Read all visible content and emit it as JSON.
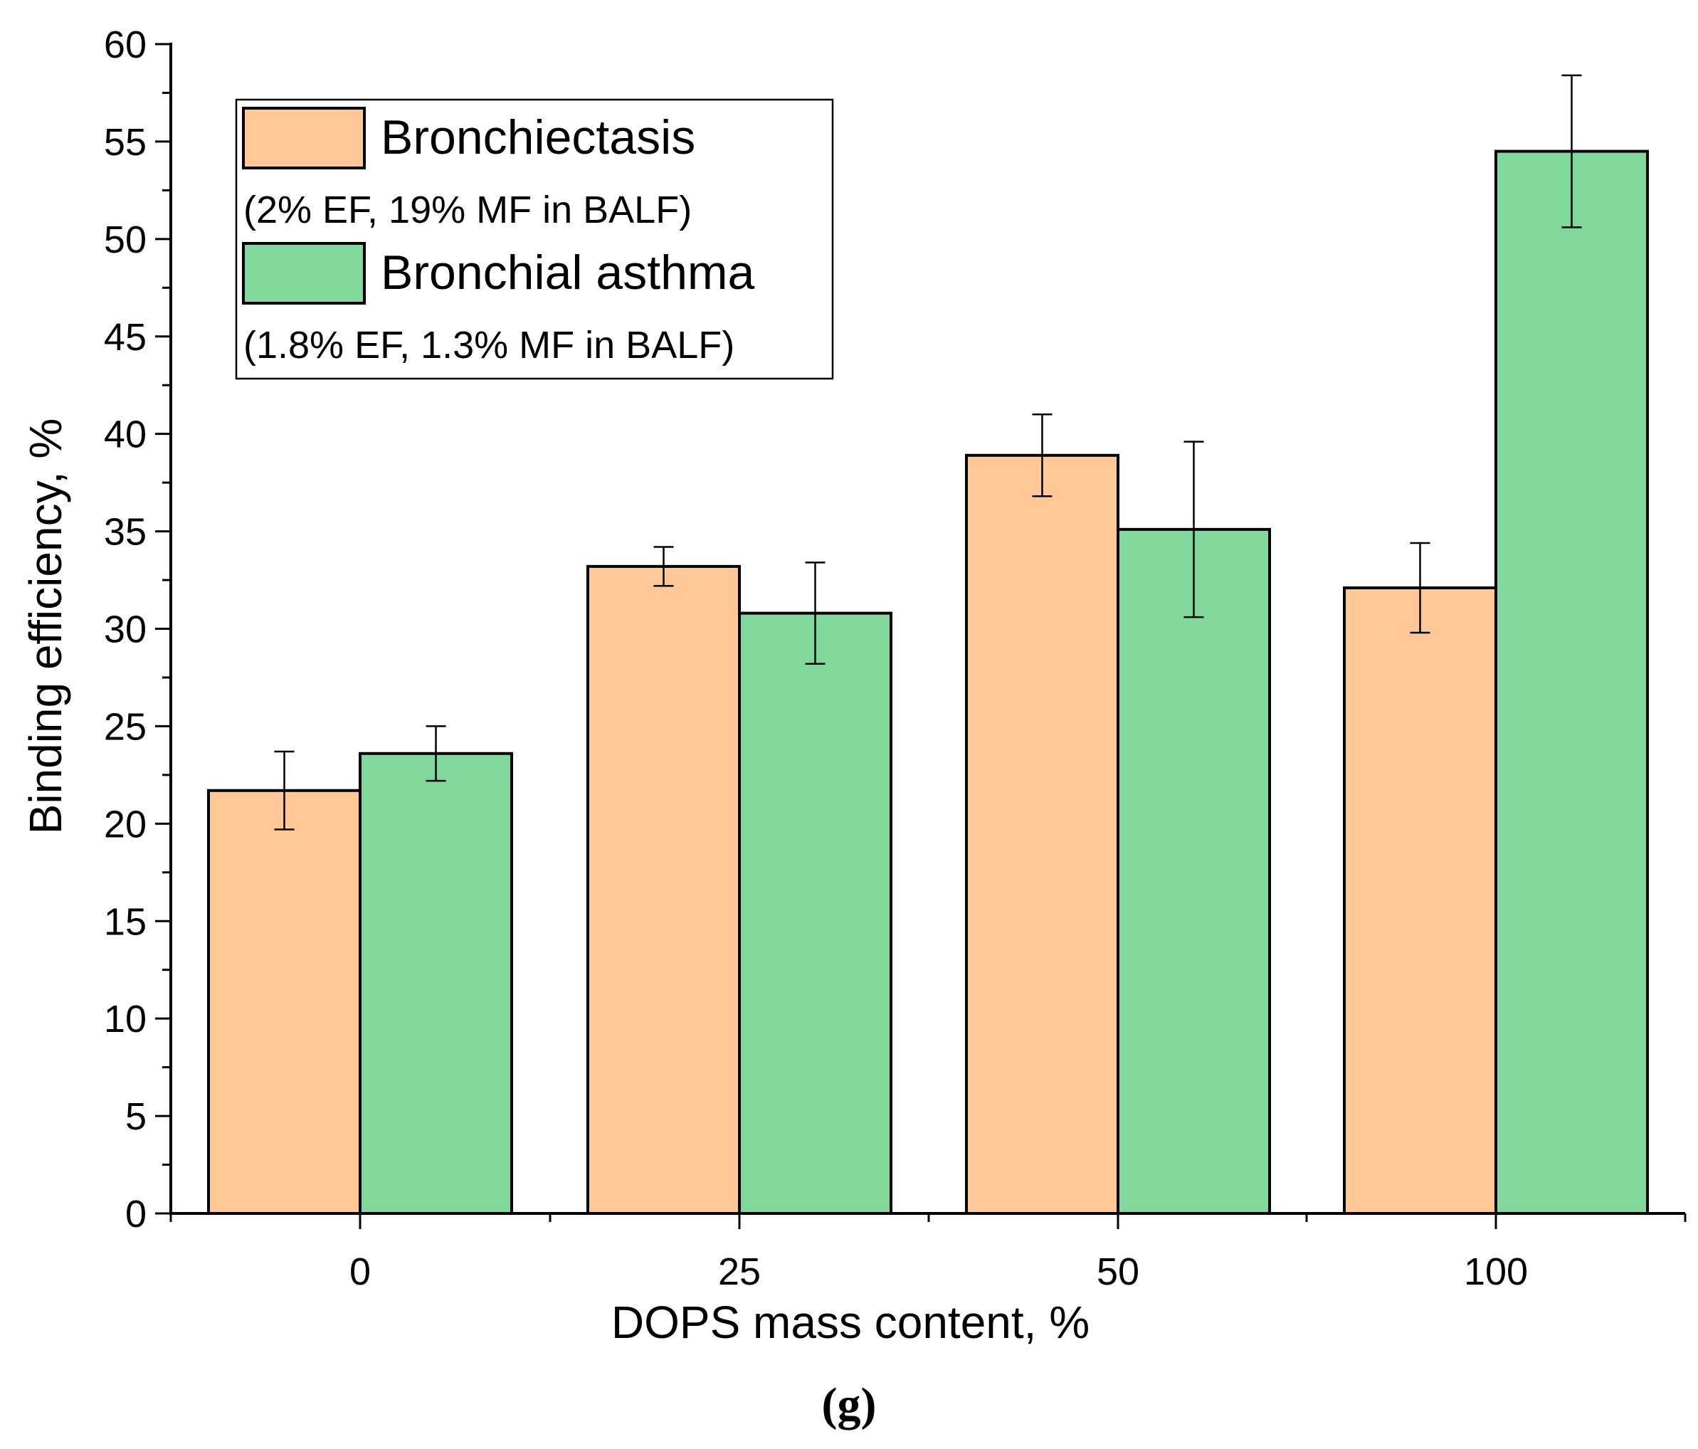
{
  "chart_data": {
    "type": "bar",
    "title": "",
    "xlabel": "DOPS mass content, %",
    "ylabel": "Binding efficiency, %",
    "categories": [
      "0",
      "25",
      "50",
      "100"
    ],
    "ylim": [
      0,
      60
    ],
    "yticks": [
      0,
      5,
      10,
      15,
      20,
      25,
      30,
      35,
      40,
      45,
      50,
      55,
      60
    ],
    "grid": false,
    "legend_position": "top-left",
    "series": [
      {
        "name": "Bronchiectasis",
        "note": "(2% EF, 19% MF in BALF)",
        "color": "#ffc896",
        "values": [
          21.7,
          33.2,
          38.9,
          32.1
        ],
        "errors": [
          2.0,
          1.0,
          2.1,
          2.3
        ]
      },
      {
        "name": "Bronchial asthma",
        "note": "(1.8% EF, 1.3% MF in BALF)",
        "color": "#80d99a",
        "values": [
          23.6,
          30.8,
          35.1,
          54.5
        ],
        "errors": [
          1.4,
          2.6,
          4.5,
          3.9
        ]
      }
    ]
  },
  "panel_label": "(g)"
}
